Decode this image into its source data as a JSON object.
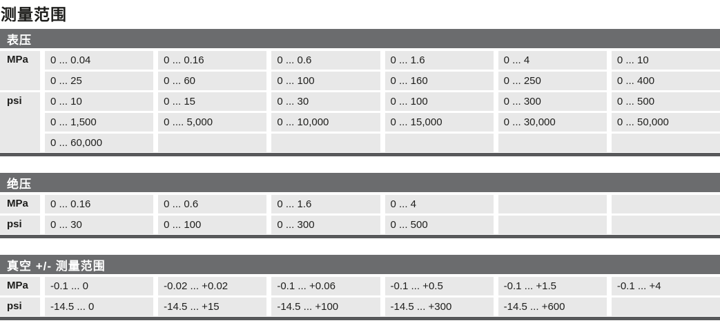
{
  "page_title": "测量范围",
  "sections": [
    {
      "title": "表压",
      "groups": [
        {
          "unit": "MPa",
          "rows": [
            [
              "0 ... 0.04",
              "0 ... 0.16",
              "0 ... 0.6",
              "0 ... 1.6",
              "0 ... 4",
              "0 ... 10"
            ],
            [
              "0 ... 25",
              "0 ... 60",
              "0 ... 100",
              "0 ... 160",
              "0 ... 250",
              "0 ... 400"
            ]
          ]
        },
        {
          "unit": "psi",
          "rows": [
            [
              "0 ... 10",
              "0 ... 15",
              "0 ... 30",
              "0 ... 100",
              "0 ... 300",
              "0 ... 500"
            ],
            [
              "0 ... 1,500",
              "0 .... 5,000",
              "0 ... 10,000",
              "0 ... 15,000",
              "0 ... 30,000",
              "0 ... 50,000"
            ],
            [
              "0 ... 60,000",
              "",
              "",
              "",
              "",
              ""
            ]
          ]
        }
      ]
    },
    {
      "title": "绝压",
      "groups": [
        {
          "unit": "MPa",
          "rows": [
            [
              "0 ... 0.16",
              "0 ... 0.6",
              "0 ... 1.6",
              "0 ... 4",
              "",
              ""
            ]
          ]
        },
        {
          "unit": "psi",
          "rows": [
            [
              "0 ... 30",
              "0 ... 100",
              "0 ... 300",
              "0 ... 500",
              "",
              ""
            ]
          ]
        }
      ]
    },
    {
      "title": "真空 +/- 测量范围",
      "groups": [
        {
          "unit": "MPa",
          "rows": [
            [
              "-0.1 ... 0",
              "-0.02 ... +0.02",
              "-0.1 ... +0.06",
              "-0.1 ... +0.5",
              "-0.1 ... +1.5",
              "-0.1 ... +4"
            ]
          ]
        },
        {
          "unit": "psi",
          "rows": [
            [
              "-14.5 ... 0",
              "-14.5 ... +15",
              "-14.5 ... +100",
              "-14.5 ... +300",
              "-14.5 ... +600",
              ""
            ]
          ]
        }
      ]
    }
  ],
  "colors": {
    "section_bar": "#6b6c6e",
    "cell_background": "#e8e8e8",
    "bottom_rule": "#58595b",
    "text": "#1d1d1b"
  }
}
